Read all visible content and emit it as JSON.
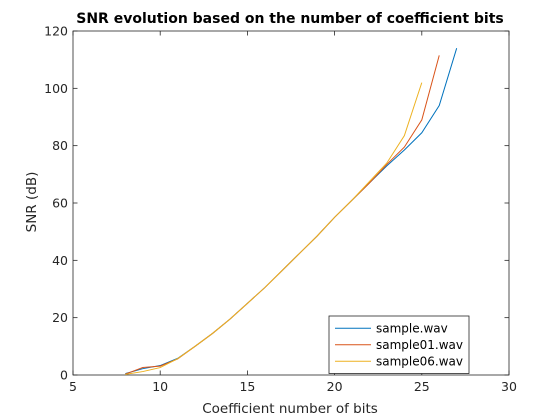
{
  "chart_data": {
    "type": "line",
    "title": "SNR evolution based on the number of coefficient bits",
    "xlabel": "Coefficient number of bits",
    "ylabel": "SNR (dB)",
    "xlim": [
      5,
      30
    ],
    "ylim": [
      0,
      120
    ],
    "xticks": [
      5,
      10,
      15,
      20,
      25,
      30
    ],
    "yticks": [
      0,
      20,
      40,
      60,
      80,
      100,
      120
    ],
    "grid": false,
    "legend_position": "bottom-right",
    "series": [
      {
        "name": "sample.wav",
        "color": "#0072BD",
        "x": [
          8,
          9,
          10,
          11,
          12,
          13,
          14,
          15,
          16,
          17,
          18,
          19,
          20,
          21,
          22,
          23,
          24,
          25,
          26,
          27
        ],
        "y": [
          0.5,
          2.2,
          3.3,
          5.8,
          10,
          14.5,
          19.5,
          25,
          30.5,
          36.5,
          42.5,
          48.5,
          55,
          61,
          67,
          73,
          78.5,
          84.5,
          94,
          114
        ]
      },
      {
        "name": "sample01.wav",
        "color": "#D95319",
        "x": [
          8,
          9,
          10,
          11,
          12,
          13,
          14,
          15,
          16,
          17,
          18,
          19,
          20,
          21,
          22,
          23,
          24,
          25,
          26
        ],
        "y": [
          0.3,
          2.6,
          3.1,
          5.6,
          10,
          14.5,
          19.5,
          25,
          30.5,
          36.5,
          42.5,
          48.5,
          55,
          61,
          67,
          73.5,
          79.5,
          89,
          111.5
        ]
      },
      {
        "name": "sample06.wav",
        "color": "#EDB120",
        "x": [
          8,
          9,
          10,
          11,
          12,
          13,
          14,
          15,
          16,
          17,
          18,
          19,
          20,
          21,
          22,
          23,
          24,
          25
        ],
        "y": [
          0.2,
          1.2,
          2.6,
          5.7,
          10,
          14.5,
          19.5,
          25,
          30.5,
          36.5,
          42.5,
          48.5,
          55,
          61,
          67.5,
          74,
          83.5,
          102
        ]
      }
    ]
  }
}
